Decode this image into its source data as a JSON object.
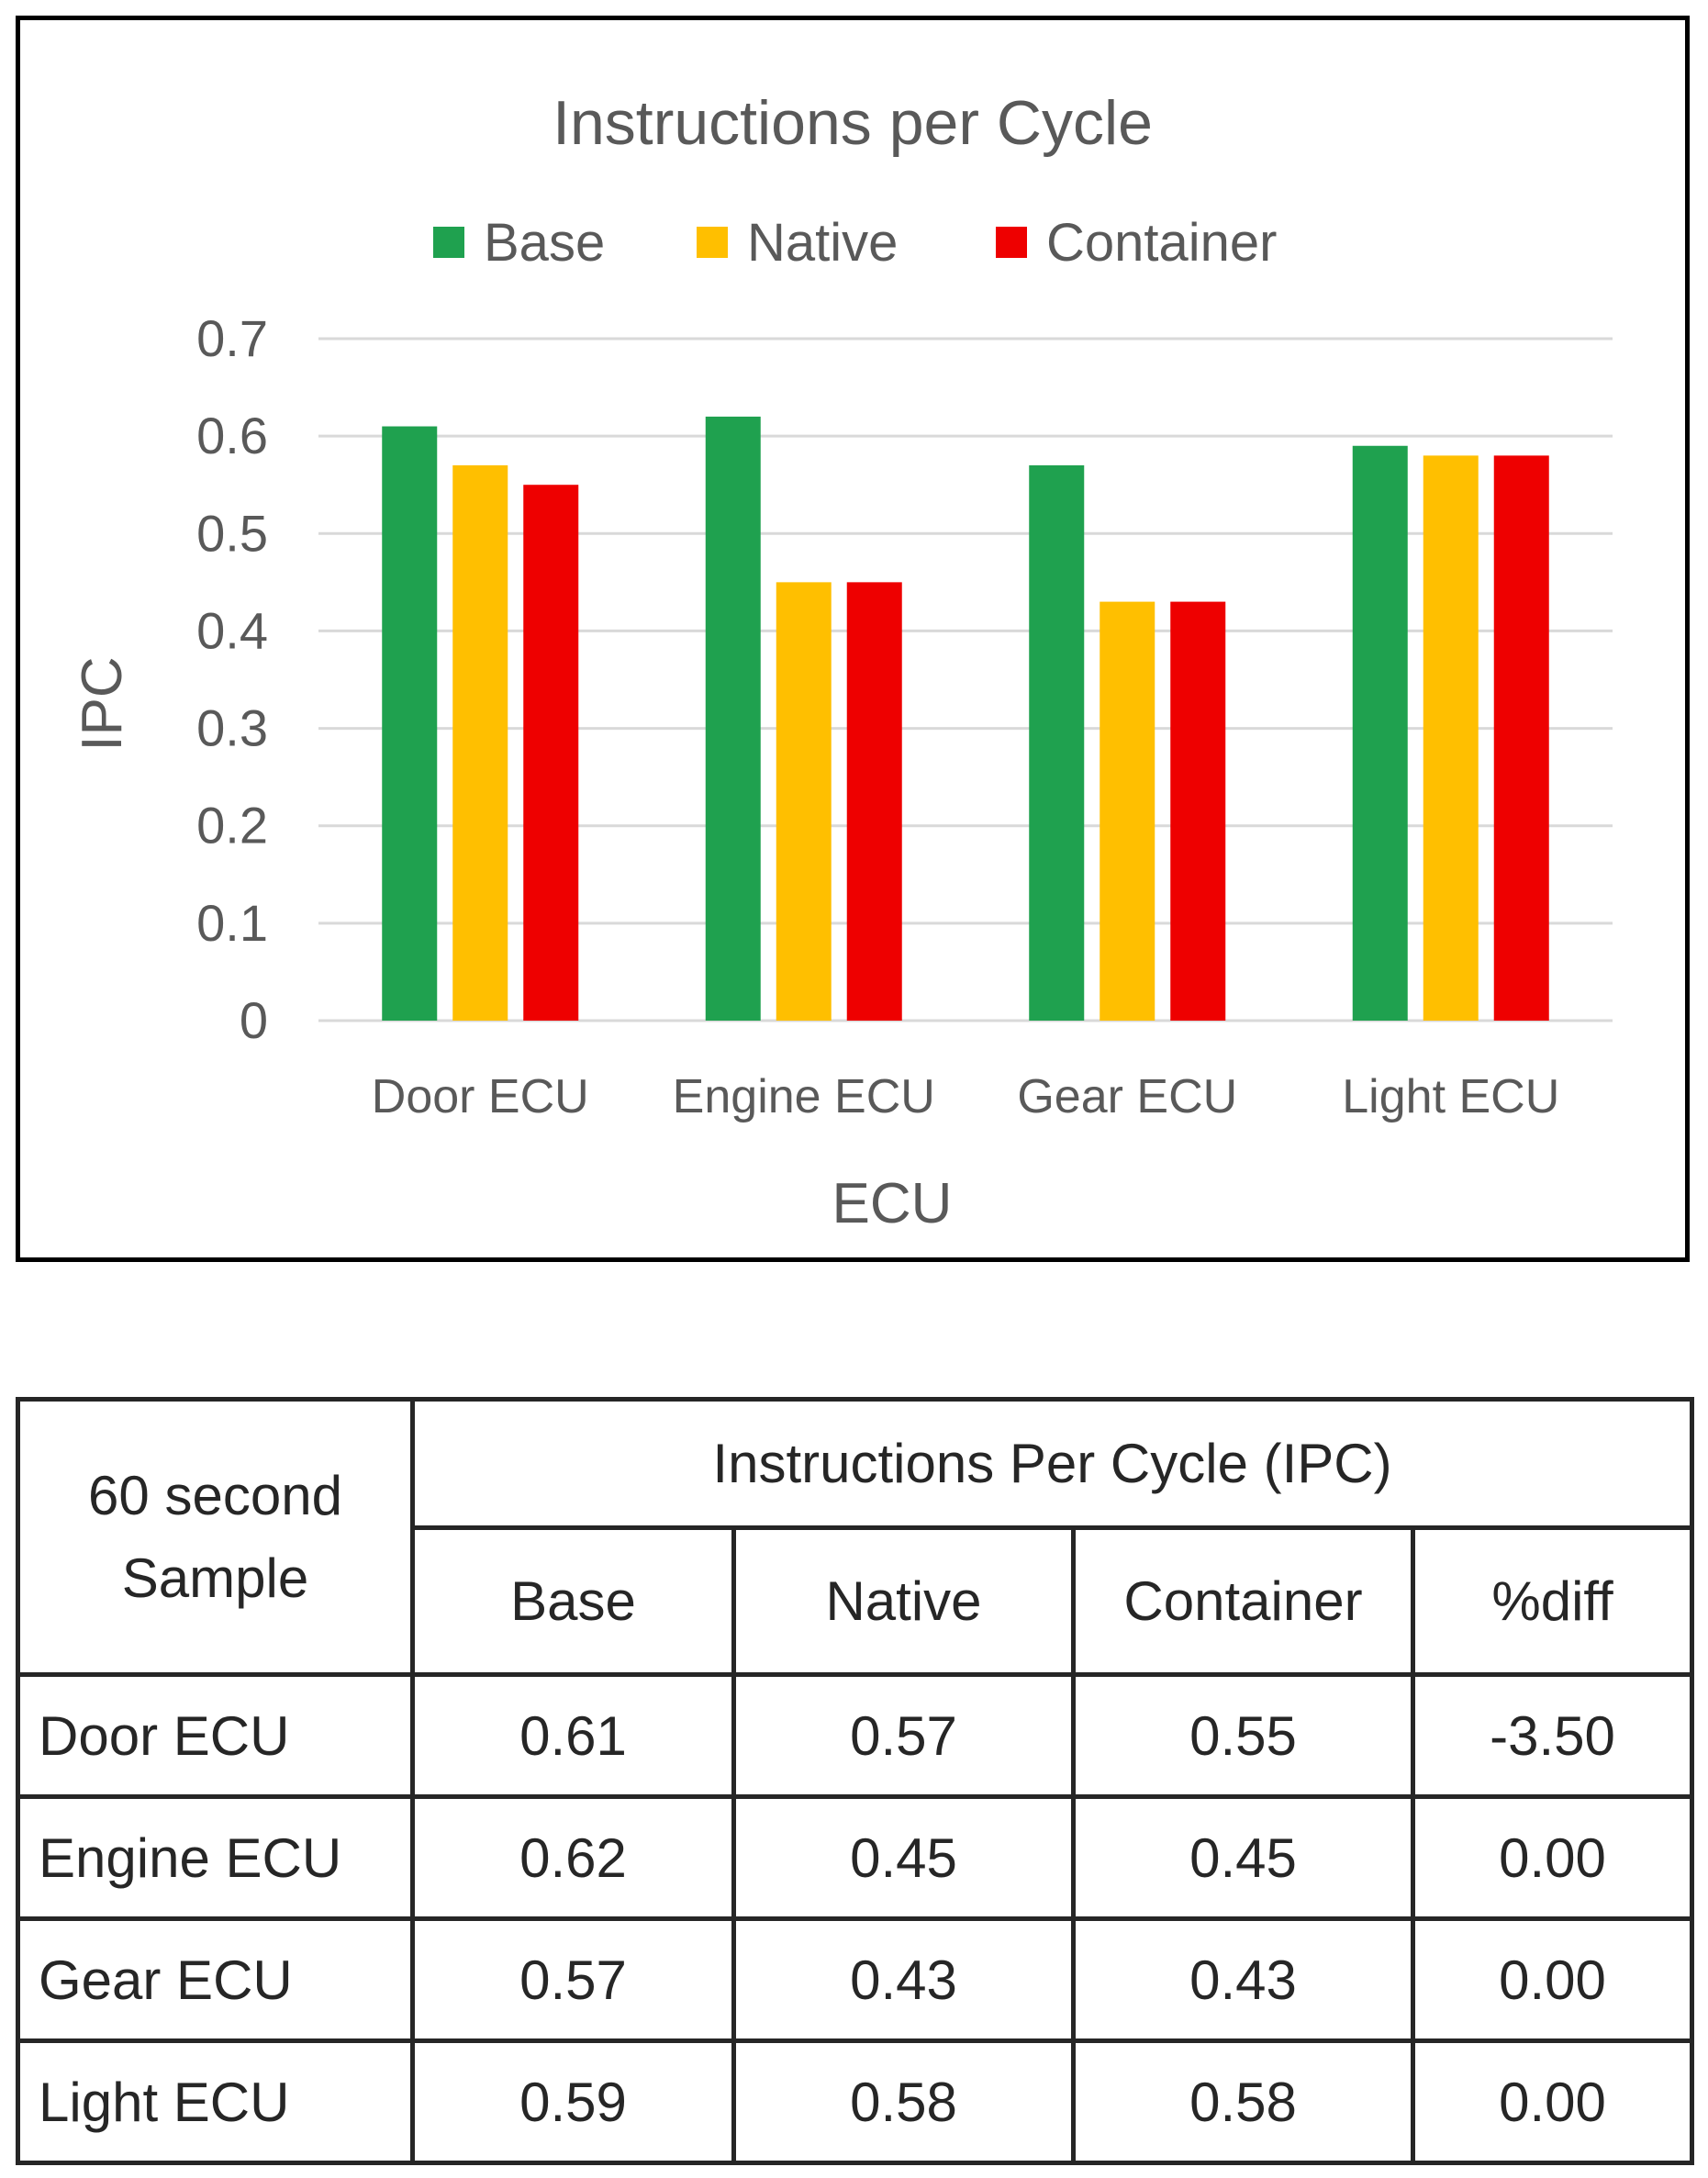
{
  "chart_data": {
    "type": "bar",
    "title": "Instructions per Cycle",
    "xlabel": "ECU",
    "ylabel": "IPC",
    "categories": [
      "Door ECU",
      "Engine ECU",
      "Gear ECU",
      "Light ECU"
    ],
    "series": [
      {
        "name": "Base",
        "color": "#1fa14f",
        "values": [
          0.61,
          0.62,
          0.57,
          0.59
        ]
      },
      {
        "name": "Native",
        "color": "#ffbf00",
        "values": [
          0.57,
          0.45,
          0.43,
          0.58
        ]
      },
      {
        "name": "Container",
        "color": "#ee0000",
        "values": [
          0.55,
          0.45,
          0.43,
          0.58
        ]
      }
    ],
    "ylim": [
      0,
      0.7
    ],
    "yticks": [
      "0",
      "0.1",
      "0.2",
      "0.3",
      "0.4",
      "0.5",
      "0.6",
      "0.7"
    ],
    "grid": true,
    "legend": "top"
  },
  "table": {
    "corner_line1": "60 second",
    "corner_line2": "Sample",
    "group_header": "Instructions Per Cycle (IPC)",
    "columns": [
      "Base",
      "Native",
      "Container",
      "%diff"
    ],
    "rows": [
      {
        "name": "Door ECU",
        "cells": [
          "0.61",
          "0.57",
          "0.55",
          "-3.50"
        ]
      },
      {
        "name": "Engine ECU",
        "cells": [
          "0.62",
          "0.45",
          "0.45",
          "0.00"
        ]
      },
      {
        "name": "Gear ECU",
        "cells": [
          "0.57",
          "0.43",
          "0.43",
          "0.00"
        ]
      },
      {
        "name": "Light ECU",
        "cells": [
          "0.59",
          "0.58",
          "0.58",
          "0.00"
        ]
      }
    ]
  }
}
